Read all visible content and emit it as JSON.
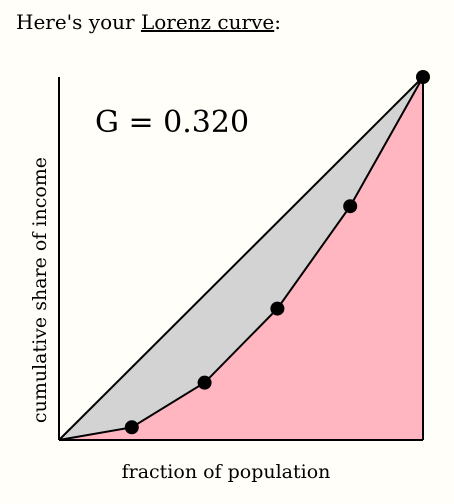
{
  "intro": {
    "prefix": "Here's your ",
    "link_text": "Lorenz curve",
    "suffix": ":"
  },
  "chart_data": {
    "type": "line",
    "title": "",
    "annotation": "G = 0.320",
    "xlabel": "fraction of population",
    "ylabel": "cumulative share of income",
    "xlim": [
      0,
      1
    ],
    "ylim": [
      0,
      1
    ],
    "grid": false,
    "series": [
      {
        "x": [
          0,
          0.2,
          0.4,
          0.6,
          0.8,
          1.0
        ],
        "y": [
          0,
          0.035,
          0.158,
          0.362,
          0.644,
          1.0
        ]
      }
    ],
    "equality_line": [
      [
        0,
        0
      ],
      [
        1,
        1
      ]
    ],
    "colors": {
      "area_between": "#d3d3d3",
      "area_under": "#ffb6c1",
      "line": "#000000",
      "points": "#000000"
    }
  }
}
